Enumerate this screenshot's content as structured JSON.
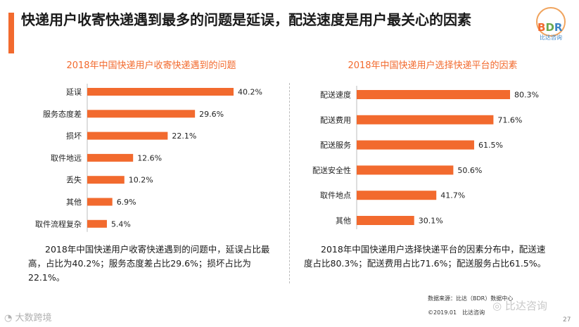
{
  "header": {
    "title": "快递用户收寄快递遇到最多的问题是延误，配送速度是用户最关心的因素"
  },
  "logo": {
    "b": "B",
    "d": "D",
    "r": "R",
    "subtitle": "比达咨询"
  },
  "chart_data": [
    {
      "type": "bar",
      "orientation": "horizontal",
      "title": "2018年中国快递用户收寄快递遇到的问题",
      "categories": [
        "延误",
        "服务态度差",
        "损坏",
        "取件地远",
        "丢失",
        "其他",
        "取件流程复杂"
      ],
      "values": [
        40.2,
        29.6,
        22.1,
        12.6,
        10.2,
        6.9,
        5.4
      ],
      "value_labels": [
        "40.2%",
        "29.6%",
        "22.1%",
        "12.6%",
        "10.2%",
        "6.9%",
        "5.4%"
      ],
      "unit": "%",
      "xlim": [
        0,
        40.2
      ],
      "color": "#f26a2e"
    },
    {
      "type": "bar",
      "orientation": "horizontal",
      "title": "2018年中国快递用户选择快递平台的因素",
      "categories": [
        "配送速度",
        "配送费用",
        "配送服务",
        "配送安全性",
        "取件地点",
        "其他"
      ],
      "values": [
        80.3,
        71.6,
        61.5,
        50.6,
        41.7,
        30.1
      ],
      "value_labels": [
        "80.3%",
        "71.6%",
        "61.5%",
        "50.6%",
        "41.7%",
        "30.1%"
      ],
      "unit": "%",
      "xlim": [
        0,
        80.3
      ],
      "color": "#f26a2e"
    }
  ],
  "summaries": {
    "left": "2018年中国快递用户收寄快递遇到的问题中，延误占比最高，占比为40.2%；服务态度差占比29.6%；损坏占比为22.1%。",
    "right": "2018年中国快递用户选择快递平台的因素分布中，配送速度占比80.3%；配送费用占比71.6%；配送服务占比61.5%。"
  },
  "footer": {
    "source": "数据来源：比达（BDR）数据中心",
    "copyright": "©2019.01　比达咨询",
    "page_number": "27",
    "watermark_left": "大数跨境",
    "watermark_right": "比达咨询"
  }
}
